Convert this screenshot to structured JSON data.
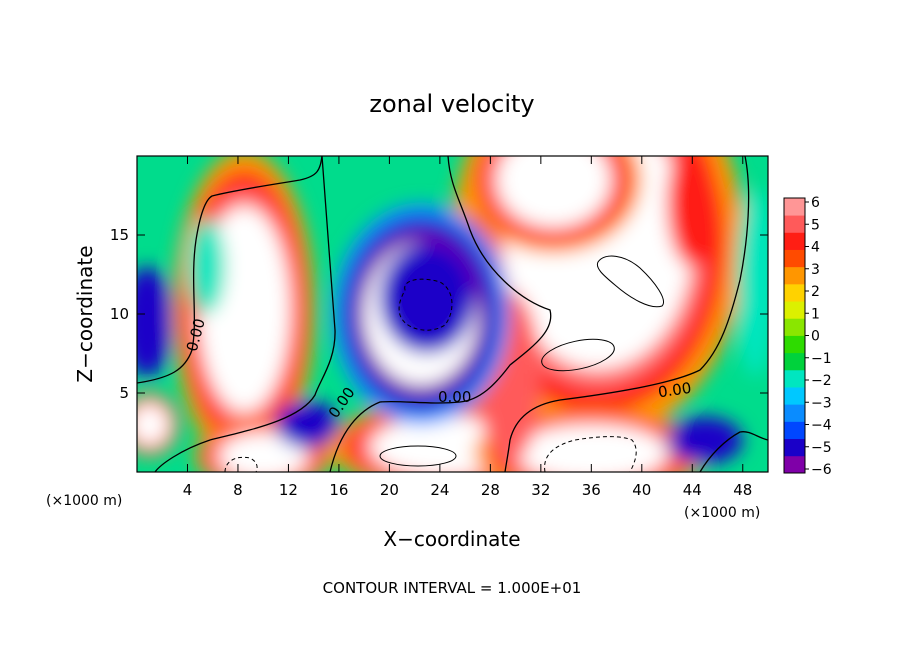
{
  "chart_data": {
    "type": "heatmap",
    "title": "zonal velocity",
    "xlabel": "X−coordinate",
    "ylabel": "Z−coordinate",
    "x_unit": "(×1000 m)",
    "y_unit": "(×1000 m)",
    "xlim": [
      0,
      50
    ],
    "ylim": [
      0,
      20
    ],
    "x_ticks": [
      4,
      8,
      12,
      16,
      20,
      24,
      28,
      32,
      36,
      40,
      44,
      48
    ],
    "y_ticks": [
      5,
      10,
      15
    ],
    "colorbar": {
      "ticks": [
        "6",
        "5",
        "4",
        "3",
        "2",
        "1",
        "0",
        "−1",
        "−2",
        "−3",
        "−4",
        "−5",
        "−6"
      ],
      "range": [
        -6,
        6
      ],
      "colors": [
        "#7f00a8",
        "#1a00c8",
        "#0047ff",
        "#0a8cff",
        "#00c8ff",
        "#00e6c0",
        "#00d23c",
        "#2edb00",
        "#8ae600",
        "#dcf000",
        "#ffd200",
        "#ff9600",
        "#ff4b00",
        "#ff1e14",
        "#ff5a5a",
        "#ff9696"
      ]
    },
    "contour_labels": [
      "0.00",
      "0.00",
      "0.00",
      "0.00"
    ],
    "footer": "CONTOUR INTERVAL = 1.000E+01",
    "regions": [
      {
        "feature": "positive-max",
        "cx": 8.5,
        "cz": 10.3,
        "rx": 3.6,
        "rz": 6.5,
        "value": 9
      },
      {
        "feature": "positive-max",
        "cx": 36.5,
        "cz": 14.5,
        "rx": 7.5,
        "rz": 8.0,
        "value": 9
      },
      {
        "feature": "positive-max",
        "cx": 33.0,
        "cz": 18.5,
        "rx": 4.5,
        "rz": 3.0,
        "value": 9
      },
      {
        "feature": "positive-max",
        "cx": 24.5,
        "cz": 1.6,
        "rx": 6.0,
        "rz": 1.9,
        "value": 9
      },
      {
        "feature": "positive-max",
        "cx": 10.0,
        "cz": 1.0,
        "rx": 3.5,
        "rz": 1.5,
        "value": 9
      },
      {
        "feature": "positive-max",
        "cx": 36.0,
        "cz": 1.2,
        "rx": 6.0,
        "rz": 1.8,
        "value": 9
      },
      {
        "feature": "positive-max",
        "cx": 1.0,
        "cz": 3.0,
        "rx": 1.5,
        "rz": 1.3,
        "value": 9
      },
      {
        "feature": "positive-band",
        "cx": 29.5,
        "cz": 6.0,
        "rx": 2.5,
        "rz": 5.5,
        "value": 5
      },
      {
        "feature": "positive-band",
        "cx": 44.0,
        "cz": 17.0,
        "rx": 2.0,
        "rz": 4.0,
        "value": 4
      },
      {
        "feature": "negative-min",
        "cx": 22.5,
        "cz": 10.0,
        "rx": 4.5,
        "rz": 4.5,
        "value": -9
      },
      {
        "feature": "negative-core",
        "cx": 23.0,
        "cz": 11.0,
        "rx": 3.8,
        "rz": 3.5,
        "value": -5
      },
      {
        "feature": "negative-min",
        "cx": 0.8,
        "cz": 9.5,
        "rx": 2.0,
        "rz": 3.5,
        "value": -5
      },
      {
        "feature": "negative",
        "cx": 13.5,
        "cz": 3.0,
        "rx": 2.5,
        "rz": 1.5,
        "value": -5
      },
      {
        "feature": "negative",
        "cx": 45.0,
        "cz": 2.0,
        "rx": 3.0,
        "rz": 1.5,
        "value": -5
      },
      {
        "feature": "negative",
        "cx": 5.5,
        "cz": 13.0,
        "rx": 1.5,
        "rz": 3.0,
        "value": -2
      },
      {
        "feature": "negative",
        "cx": 49.0,
        "cz": 12.0,
        "rx": 1.5,
        "rz": 6.0,
        "value": -2
      }
    ]
  }
}
